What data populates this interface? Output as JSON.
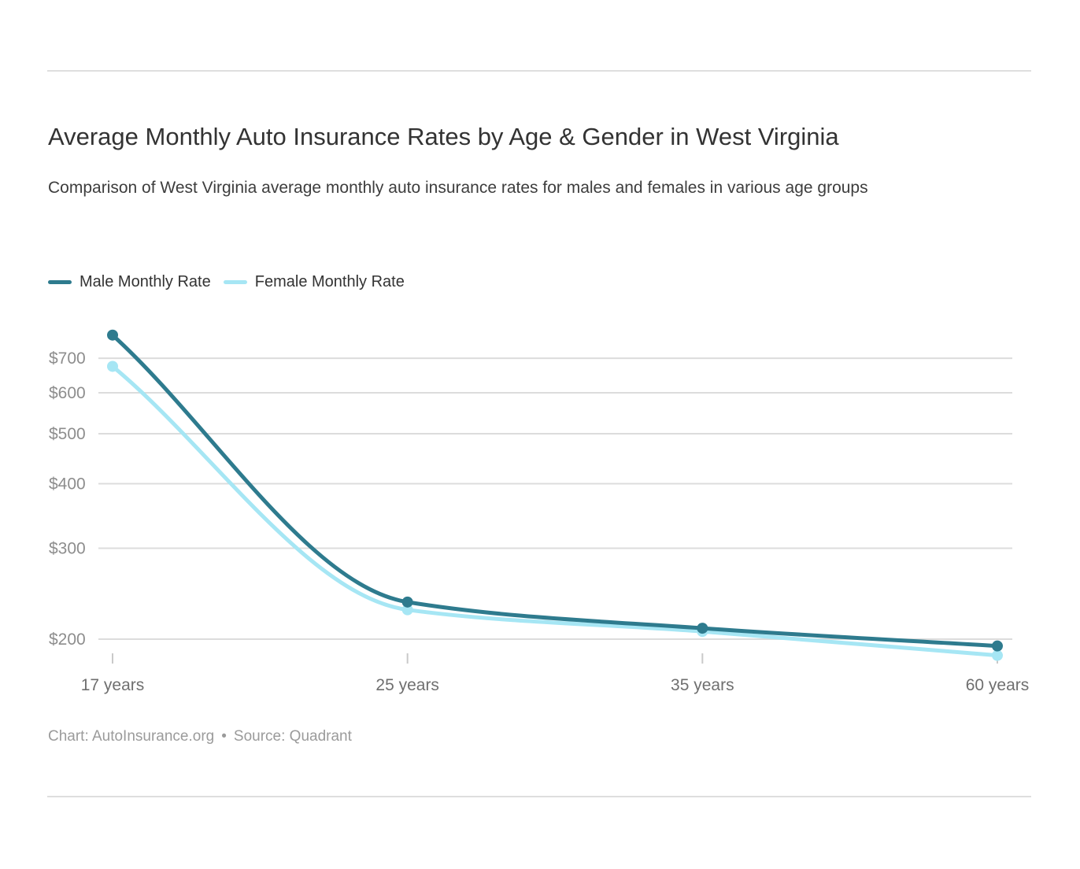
{
  "page": {
    "title": "Average Monthly Auto Insurance Rates by Age & Gender in West Virginia",
    "subtitle": "Comparison of West Virginia average monthly auto insurance rates for males and females in various age groups"
  },
  "legend": {
    "items": [
      {
        "label": "Male Monthly Rate",
        "color": "#2e7b8e"
      },
      {
        "label": "Female Monthly Rate",
        "color": "#a6e6f4"
      }
    ]
  },
  "chart_data": {
    "type": "line",
    "title": "Average Monthly Auto Insurance Rates by Age & Gender in West Virginia",
    "subtitle": "Comparison of West Virginia average monthly auto insurance rates for males and females in various age groups",
    "x_categories": [
      "17 years",
      "25 years",
      "35 years",
      "60 years"
    ],
    "series": [
      {
        "name": "Male Monthly Rate",
        "color": "#2e7b8e",
        "values": [
          776,
          236,
          210,
          194
        ]
      },
      {
        "name": "Female Monthly Rate",
        "color": "#a6e6f4",
        "values": [
          675,
          228,
          207,
          186
        ]
      }
    ],
    "y_axis": {
      "scale": "log",
      "tick_values": [
        200,
        300,
        400,
        500,
        600,
        700
      ],
      "tick_labels": [
        "$200",
        "$300",
        "$400",
        "$500",
        "$600",
        "$700"
      ],
      "range": [
        186,
        776
      ]
    },
    "grid": true,
    "curve": "monotone",
    "legend_position": "top-left",
    "colors": {
      "gridline": "#dcdcdc",
      "x_tick": "#c9c9c9",
      "y_label": "#8d8d8d",
      "x_label": "#6f6f6f"
    }
  },
  "footer": {
    "chart_credit": "Chart: AutoInsurance.org",
    "separator": "•",
    "source": "Source: Quadrant"
  }
}
